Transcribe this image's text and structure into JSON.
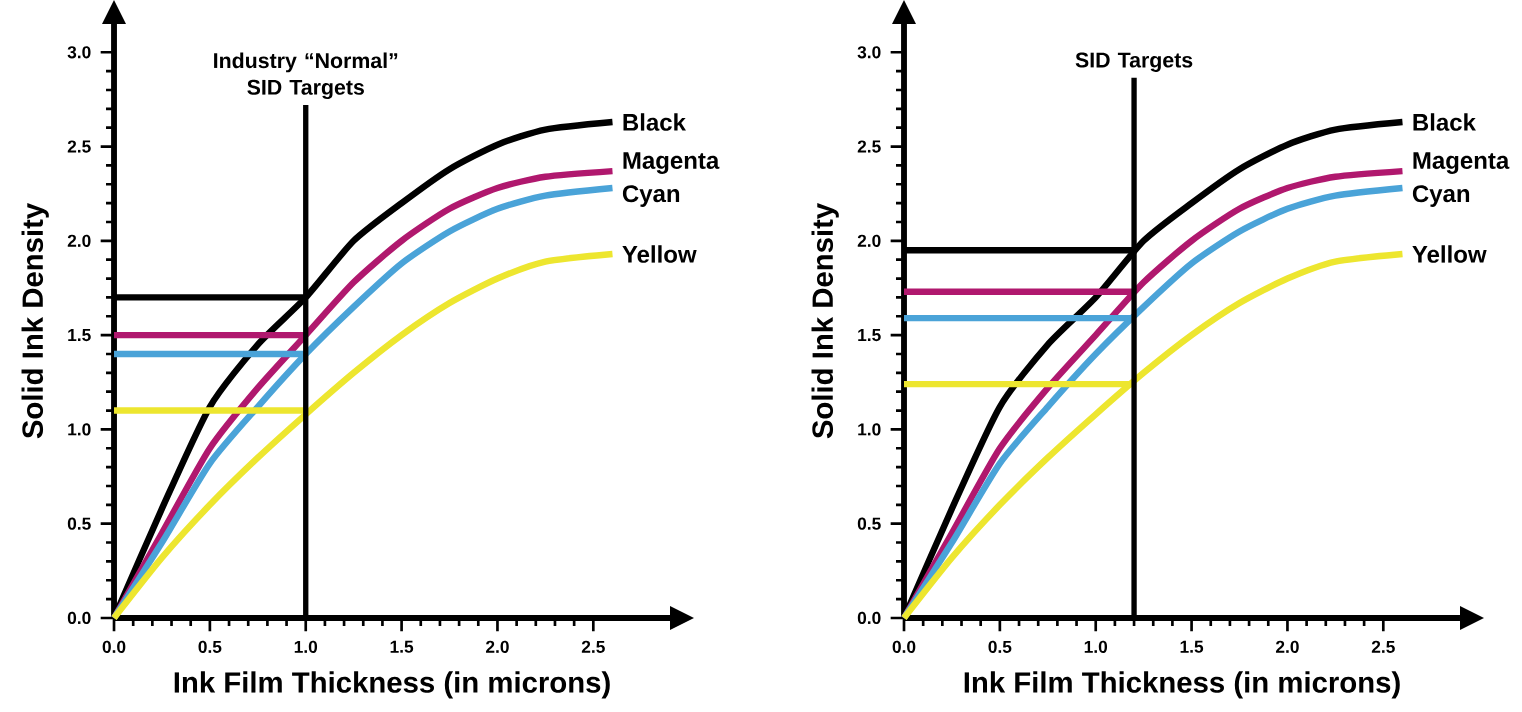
{
  "chart_data": [
    {
      "type": "line",
      "xlabel": "Ink Film Thickness (in microns)",
      "ylabel": "Solid Ink Density",
      "x": [
        0,
        0.25,
        0.5,
        0.75,
        1.0,
        1.25,
        1.5,
        1.75,
        2.0,
        2.25,
        2.6
      ],
      "xlim": [
        0,
        2.9
      ],
      "ylim": [
        0,
        3.15
      ],
      "xticks": [
        {
          "value": 0,
          "label": "0.0"
        },
        0.5,
        {
          "value": 1,
          "label": "1.0"
        },
        1.5,
        {
          "value": 2,
          "label": "2.0"
        },
        2.5
      ],
      "yticks": [
        {
          "value": 0,
          "label": "0.0"
        },
        0.5,
        {
          "value": 1,
          "label": "1.0"
        },
        1.5,
        {
          "value": 2,
          "label": "2.0"
        },
        2.5,
        {
          "value": 3,
          "label": "3.0"
        }
      ],
      "series": [
        {
          "name": "Black",
          "color": "#000000",
          "values": [
            0,
            0.58,
            1.12,
            1.45,
            1.7,
            2.0,
            2.2,
            2.38,
            2.51,
            2.59,
            2.63
          ]
        },
        {
          "name": "Magenta",
          "color": "#b0186e",
          "values": [
            0,
            0.45,
            0.9,
            1.22,
            1.5,
            1.78,
            2.0,
            2.17,
            2.28,
            2.34,
            2.37
          ]
        },
        {
          "name": "Cyan",
          "color": "#4aa3d8",
          "values": [
            0,
            0.4,
            0.82,
            1.12,
            1.4,
            1.65,
            1.88,
            2.05,
            2.17,
            2.24,
            2.28
          ]
        },
        {
          "name": "Yellow",
          "color": "#ede62f",
          "values": [
            0,
            0.32,
            0.6,
            0.85,
            1.08,
            1.3,
            1.5,
            1.67,
            1.8,
            1.89,
            1.93
          ]
        },
        {
          "color": "#000000",
          "x": [
            0,
            1.0
          ],
          "values": [
            1.7,
            1.7
          ]
        },
        {
          "color": "#b0186e",
          "x": [
            0,
            1.0
          ],
          "values": [
            1.5,
            1.5
          ]
        },
        {
          "color": "#4aa3d8",
          "x": [
            0,
            1.0
          ],
          "values": [
            1.4,
            1.4
          ]
        },
        {
          "color": "#ede62f",
          "x": [
            0,
            1.0
          ],
          "values": [
            1.1,
            1.1
          ]
        }
      ],
      "ref_lines": [
        {
          "axis": "x",
          "value": 1.0,
          "label": "Industry “Normal” SID Targets",
          "color": "#000000"
        }
      ]
    },
    {
      "type": "line",
      "xlabel": "Ink Film Thickness (in microns)",
      "ylabel": "Solid Ink Density",
      "x": [
        0,
        0.25,
        0.5,
        0.75,
        1.0,
        1.25,
        1.5,
        1.75,
        2.0,
        2.25,
        2.6
      ],
      "xlim": [
        0,
        2.9
      ],
      "ylim": [
        0,
        3.15
      ],
      "xticks": [
        {
          "value": 0,
          "label": "0.0"
        },
        0.5,
        {
          "value": 1,
          "label": "1.0"
        },
        1.5,
        {
          "value": 2,
          "label": "2.0"
        },
        2.5
      ],
      "yticks": [
        {
          "value": 0,
          "label": "0.0"
        },
        0.5,
        {
          "value": 1,
          "label": "1.0"
        },
        1.5,
        {
          "value": 2,
          "label": "2.0"
        },
        2.5,
        {
          "value": 3,
          "label": "3.0"
        }
      ],
      "series": [
        {
          "name": "Black",
          "color": "#000000",
          "values": [
            0,
            0.58,
            1.12,
            1.45,
            1.7,
            2.0,
            2.2,
            2.38,
            2.51,
            2.59,
            2.63
          ]
        },
        {
          "name": "Magenta",
          "color": "#b0186e",
          "values": [
            0,
            0.45,
            0.9,
            1.22,
            1.5,
            1.78,
            2.0,
            2.17,
            2.28,
            2.34,
            2.37
          ]
        },
        {
          "name": "Cyan",
          "color": "#4aa3d8",
          "values": [
            0,
            0.4,
            0.82,
            1.12,
            1.4,
            1.65,
            1.88,
            2.05,
            2.17,
            2.24,
            2.28
          ]
        },
        {
          "name": "Yellow",
          "color": "#ede62f",
          "values": [
            0,
            0.32,
            0.6,
            0.85,
            1.08,
            1.3,
            1.5,
            1.67,
            1.8,
            1.89,
            1.93
          ]
        },
        {
          "color": "#000000",
          "x": [
            0,
            1.2
          ],
          "values": [
            1.95,
            1.95
          ]
        },
        {
          "color": "#b0186e",
          "x": [
            0,
            1.2
          ],
          "values": [
            1.73,
            1.73
          ]
        },
        {
          "color": "#4aa3d8",
          "x": [
            0,
            1.2
          ],
          "values": [
            1.59,
            1.59
          ]
        },
        {
          "color": "#ede62f",
          "x": [
            0,
            1.2
          ],
          "values": [
            1.24,
            1.24
          ]
        }
      ],
      "ref_lines": [
        {
          "axis": "x",
          "value": 1.2,
          "label": "SID Targets",
          "color": "#000000"
        }
      ]
    }
  ]
}
